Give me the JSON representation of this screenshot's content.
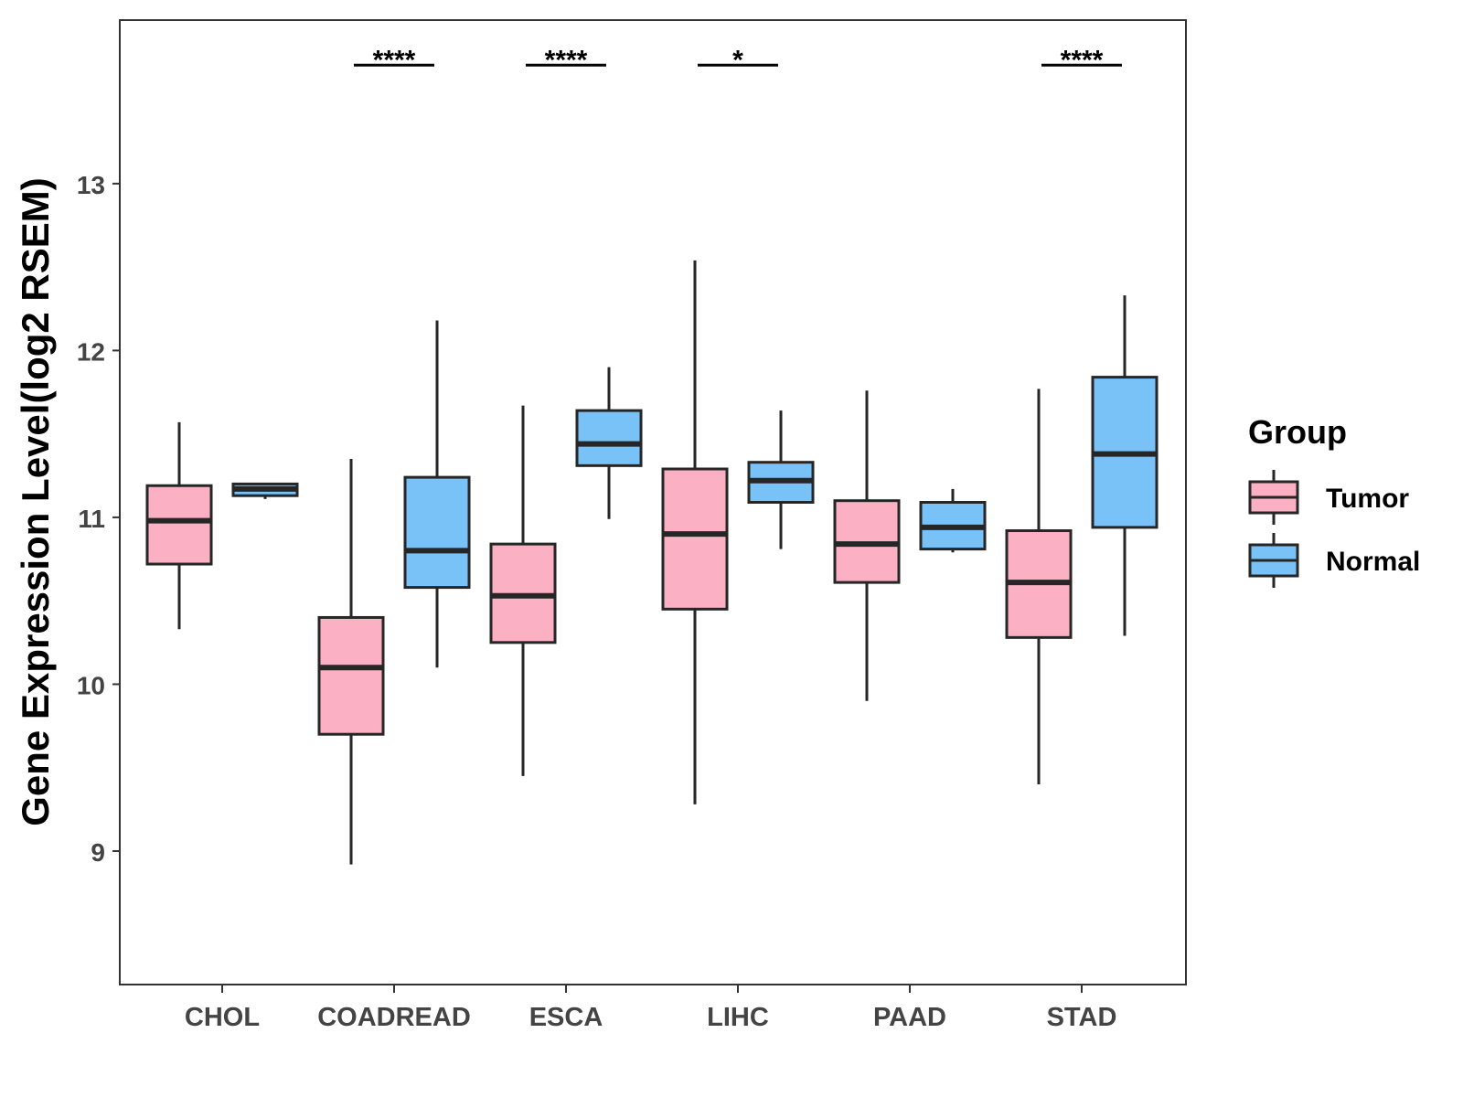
{
  "chart_data": {
    "type": "boxplot",
    "title": "",
    "xlabel": "",
    "ylabel": "Gene Expression Level(log2 RSEM)",
    "ylim": [
      8.2,
      13.98
    ],
    "yticks": [
      9,
      10,
      11,
      12,
      13
    ],
    "grid": false,
    "legend": {
      "title": "Group",
      "placement": "right",
      "entries": [
        {
          "name": "Tumor",
          "color": "#FBB1C3"
        },
        {
          "name": "Normal",
          "color": "#79C2F8"
        }
      ]
    },
    "categories": [
      "CHOL",
      "COADREAD",
      "ESCA",
      "LIHC",
      "PAAD",
      "STAD"
    ],
    "series": [
      {
        "name": "Tumor",
        "color": "#FBB1C3",
        "boxes": [
          {
            "whisker_low": 10.33,
            "q1": 10.72,
            "median": 10.98,
            "q3": 11.19,
            "whisker_high": 11.57
          },
          {
            "whisker_low": 8.92,
            "q1": 9.7,
            "median": 10.1,
            "q3": 10.4,
            "whisker_high": 11.35
          },
          {
            "whisker_low": 9.45,
            "q1": 10.25,
            "median": 10.53,
            "q3": 10.84,
            "whisker_high": 11.67
          },
          {
            "whisker_low": 9.28,
            "q1": 10.45,
            "median": 10.9,
            "q3": 11.29,
            "whisker_high": 12.54
          },
          {
            "whisker_low": 9.9,
            "q1": 10.61,
            "median": 10.84,
            "q3": 11.1,
            "whisker_high": 11.76
          },
          {
            "whisker_low": 9.4,
            "q1": 10.28,
            "median": 10.61,
            "q3": 10.92,
            "whisker_high": 11.77
          }
        ]
      },
      {
        "name": "Normal",
        "color": "#79C2F8",
        "boxes": [
          {
            "whisker_low": 11.11,
            "q1": 11.13,
            "median": 11.17,
            "q3": 11.2,
            "whisker_high": 11.2
          },
          {
            "whisker_low": 10.1,
            "q1": 10.58,
            "median": 10.8,
            "q3": 11.24,
            "whisker_high": 12.18
          },
          {
            "whisker_low": 10.99,
            "q1": 11.31,
            "median": 11.44,
            "q3": 11.64,
            "whisker_high": 11.9
          },
          {
            "whisker_low": 10.81,
            "q1": 11.09,
            "median": 11.22,
            "q3": 11.33,
            "whisker_high": 11.64
          },
          {
            "whisker_low": 10.79,
            "q1": 10.81,
            "median": 10.94,
            "q3": 11.09,
            "whisker_high": 11.17
          },
          {
            "whisker_low": 10.29,
            "q1": 10.94,
            "median": 11.38,
            "q3": 11.84,
            "whisker_high": 12.33
          }
        ]
      }
    ],
    "annotations": [
      {
        "category": "COADREAD",
        "label": "****",
        "y": 13.71
      },
      {
        "category": "ESCA",
        "label": "****",
        "y": 13.71
      },
      {
        "category": "LIHC",
        "label": "*",
        "y": 13.71
      },
      {
        "category": "STAD",
        "label": "****",
        "y": 13.71
      }
    ]
  }
}
